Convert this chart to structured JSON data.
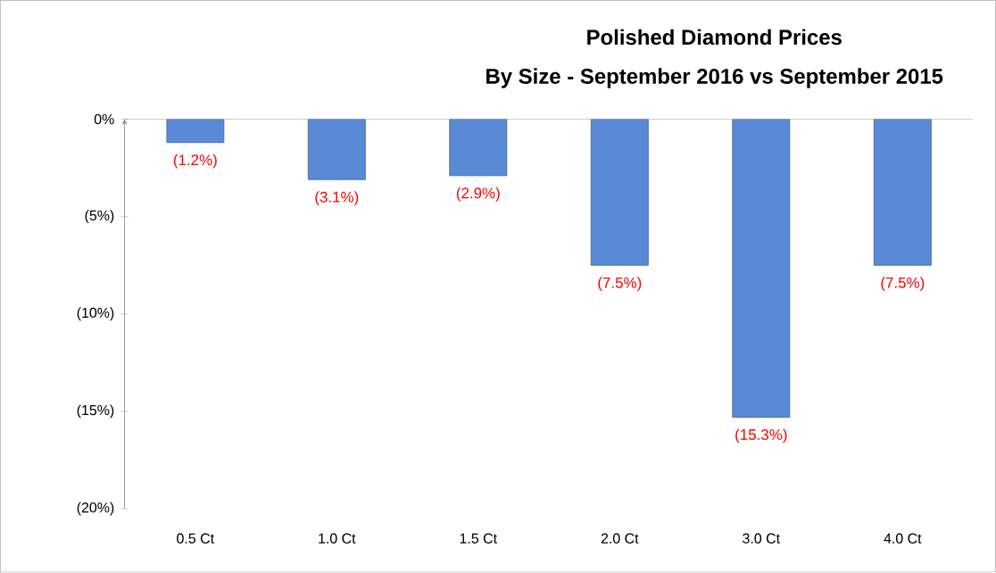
{
  "chart_data": {
    "type": "bar",
    "title": "Polished Diamond Prices",
    "subtitle": "By Size - September 2016 vs September 2015",
    "categories": [
      "0.5 Ct",
      "1.0 Ct",
      "1.5 Ct",
      "2.0 Ct",
      "3.0 Ct",
      "4.0 Ct"
    ],
    "values": [
      -1.2,
      -3.1,
      -2.9,
      -7.5,
      -15.3,
      -7.5
    ],
    "value_labels": [
      "(1.2%)",
      "(3.1%)",
      "(2.9%)",
      "(7.5%)",
      "(15.3%)",
      "(7.5%)"
    ],
    "color": "#5a8ad6",
    "ylim": [
      -20,
      0
    ],
    "yticks": [
      {
        "value": -20,
        "label": "(20%)"
      },
      {
        "value": -15,
        "label": "(15%)"
      },
      {
        "value": -10,
        "label": "(10%)"
      },
      {
        "value": -5,
        "label": "(5%)"
      },
      {
        "value": 0,
        "label": "0%"
      }
    ]
  }
}
